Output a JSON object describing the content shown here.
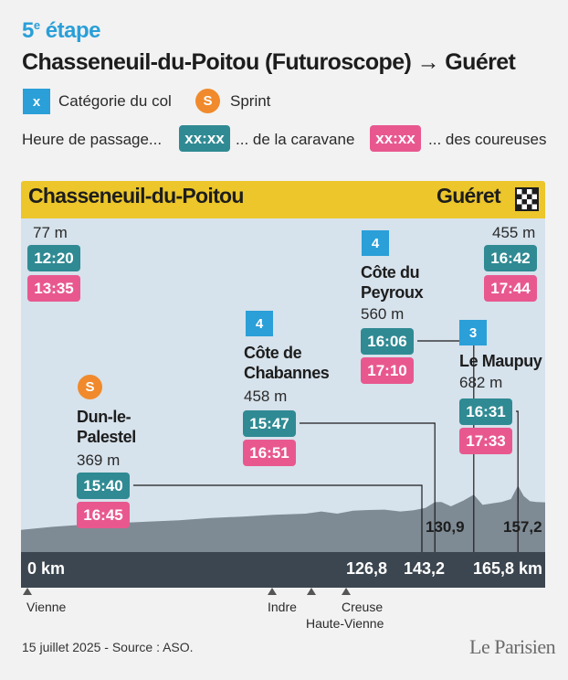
{
  "header": {
    "stage_number": "5",
    "stage_suffix": "e",
    "stage_word": "étape",
    "route": "Chasseneuil-du-Poitou (Futuroscope) → Guéret"
  },
  "legend": {
    "category_symbol": "x",
    "category_label": "Catégorie du col",
    "sprint_symbol": "S",
    "sprint_label": "Sprint",
    "passage_label": "Heure de passage...",
    "caravan_sample": "xx:xx",
    "caravan_label": "... de la caravane",
    "riders_sample": "xx:xx",
    "riders_label": "... des coureuses"
  },
  "colors": {
    "accent_blue": "#2a9fd8",
    "sprint_orange": "#f08a2c",
    "caravan_teal": "#2f8a93",
    "riders_pink": "#e8588f",
    "topbar_yellow": "#ecc62a",
    "profile_grey": "#7e8a94"
  },
  "chart_data": {
    "type": "area",
    "start": {
      "name": "Chasseneuil-du-Poitou",
      "altitude": "77 m",
      "caravan": "12:20",
      "riders": "13:35",
      "km": "0 km"
    },
    "finish": {
      "name": "Guéret",
      "altitude": "455 m",
      "caravan": "16:42",
      "riders": "17:44",
      "km": "165,8 km"
    },
    "points": [
      {
        "id": "dun",
        "kind": "sprint",
        "symbol": "S",
        "name_lines": [
          "Dun-le-",
          "Palestel"
        ],
        "altitude": "369 m",
        "caravan": "15:40",
        "riders": "16:45",
        "km": "126,8",
        "km_value": 126.8
      },
      {
        "id": "chabannes",
        "kind": "climb",
        "category": "4",
        "name_lines": [
          "Côte de",
          "Chabannes"
        ],
        "altitude": "458 m",
        "caravan": "15:47",
        "riders": "16:51",
        "km": "130,9",
        "km_value": 130.9
      },
      {
        "id": "peyroux",
        "kind": "climb",
        "category": "4",
        "name_lines": [
          "Côte du",
          "Peyroux"
        ],
        "altitude": "560 m",
        "caravan": "16:06",
        "riders": "17:10",
        "km": "143,2",
        "km_value": 143.2
      },
      {
        "id": "maupuy",
        "kind": "climb",
        "category": "3",
        "name_lines": [
          "Le Maupuy"
        ],
        "altitude": "682 m",
        "caravan": "16:31",
        "riders": "17:33",
        "km": "157,2",
        "km_value": 157.2
      }
    ],
    "profile_km": [
      0,
      10,
      20,
      30,
      40,
      50,
      60,
      70,
      80,
      90,
      95,
      100,
      105,
      110,
      115,
      120,
      124,
      126.8,
      128,
      130.9,
      133,
      136,
      138,
      140,
      143.2,
      146,
      149,
      152,
      155,
      157.2,
      159,
      161,
      163,
      165.8
    ],
    "profile_alt": [
      77,
      120,
      150,
      170,
      190,
      210,
      240,
      260,
      285,
      300,
      330,
      300,
      340,
      350,
      355,
      330,
      345,
      369,
      380,
      458,
      460,
      400,
      440,
      480,
      560,
      420,
      440,
      460,
      500,
      682,
      540,
      470,
      460,
      455
    ],
    "alt_range": [
      0,
      700
    ],
    "km_range": [
      0,
      165.8
    ],
    "regions": [
      {
        "name": "Vienne",
        "km_value": 0
      },
      {
        "name": "Indre",
        "km_value": 104
      },
      {
        "name": "Creuse",
        "km_value": 124
      },
      {
        "name": "Haute-Vienne",
        "km_value": 116
      }
    ]
  },
  "footer": {
    "source": "15 juillet 2025 - Source : ASO.",
    "logo": "Le Parisien"
  }
}
